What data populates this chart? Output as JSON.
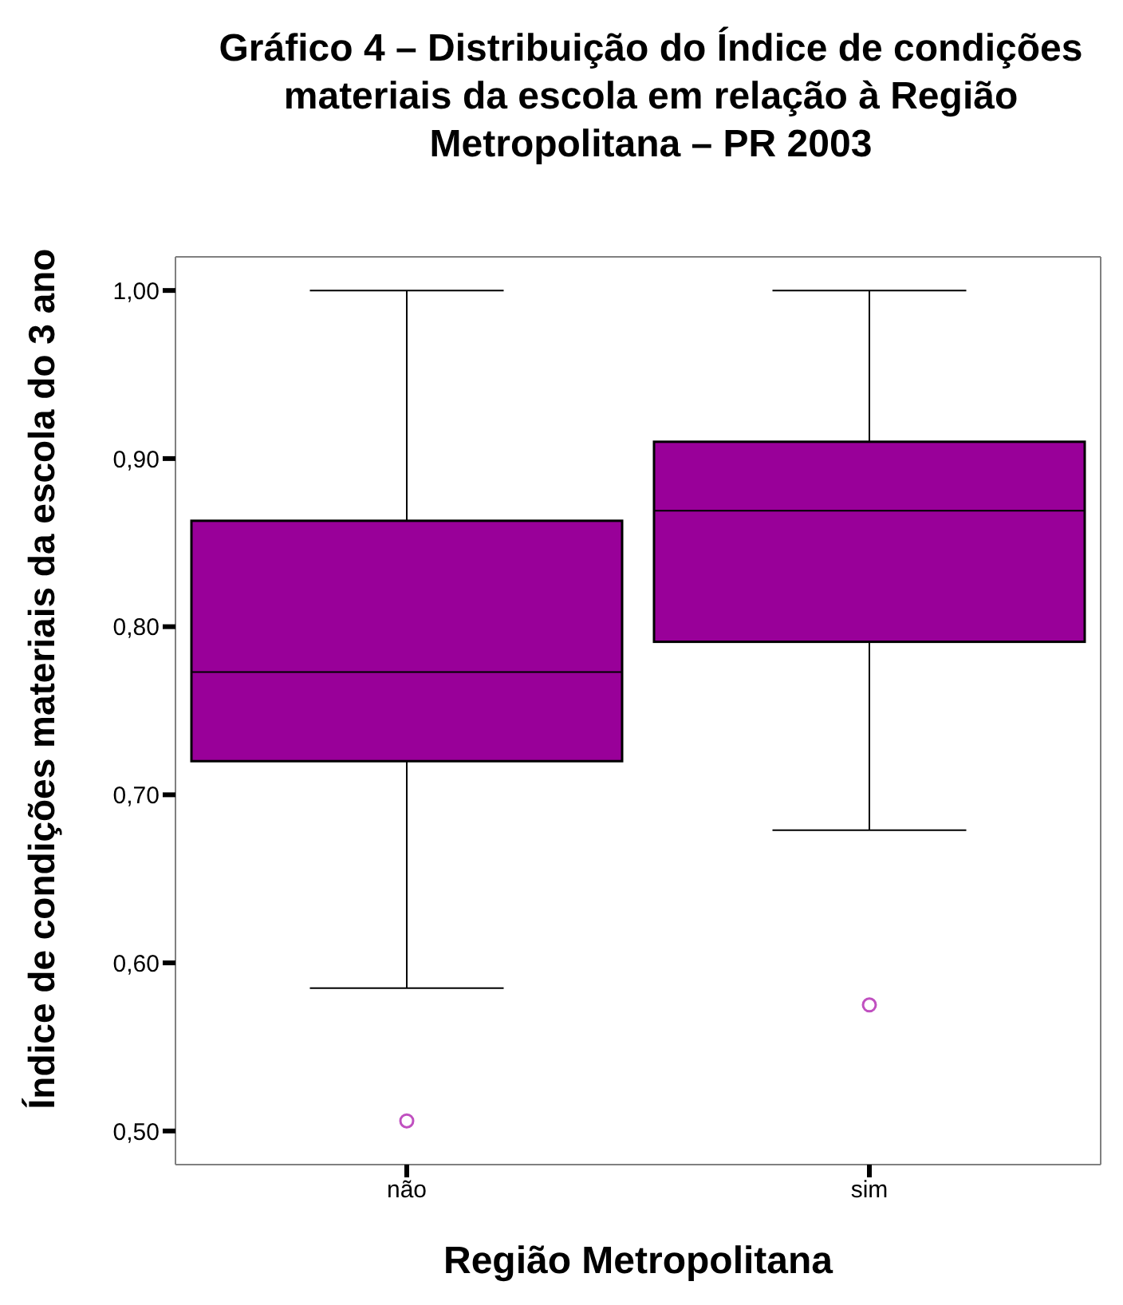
{
  "chart_data": {
    "type": "box",
    "title": "Gráfico 4 – Distribuição do Índice de condições materiais da escola em relação à Região Metropolitana – PR 2003",
    "xlabel": "Região Metropolitana",
    "ylabel": "Índice de condições materiais da escola do 3 ano",
    "categories": [
      "não",
      "sim"
    ],
    "color": "#990099",
    "boxes": [
      {
        "low": 0.585,
        "q1": 0.72,
        "median": 0.773,
        "q3": 0.863,
        "high": 1.0,
        "outliers": [
          0.506
        ]
      },
      {
        "low": 0.679,
        "q1": 0.791,
        "median": 0.869,
        "q3": 0.91,
        "high": 1.0,
        "outliers": [
          0.575
        ]
      }
    ],
    "ylim": [
      0.48,
      1.02
    ],
    "yticks": [
      {
        "value": 0.5,
        "label": "0,50"
      },
      {
        "value": 0.6,
        "label": "0,60"
      },
      {
        "value": 0.7,
        "label": "0,70"
      },
      {
        "value": 0.8,
        "label": "0,80"
      },
      {
        "value": 0.9,
        "label": "0,90"
      },
      {
        "value": 1.0,
        "label": "1,00"
      }
    ],
    "grid": false,
    "legend": false
  }
}
